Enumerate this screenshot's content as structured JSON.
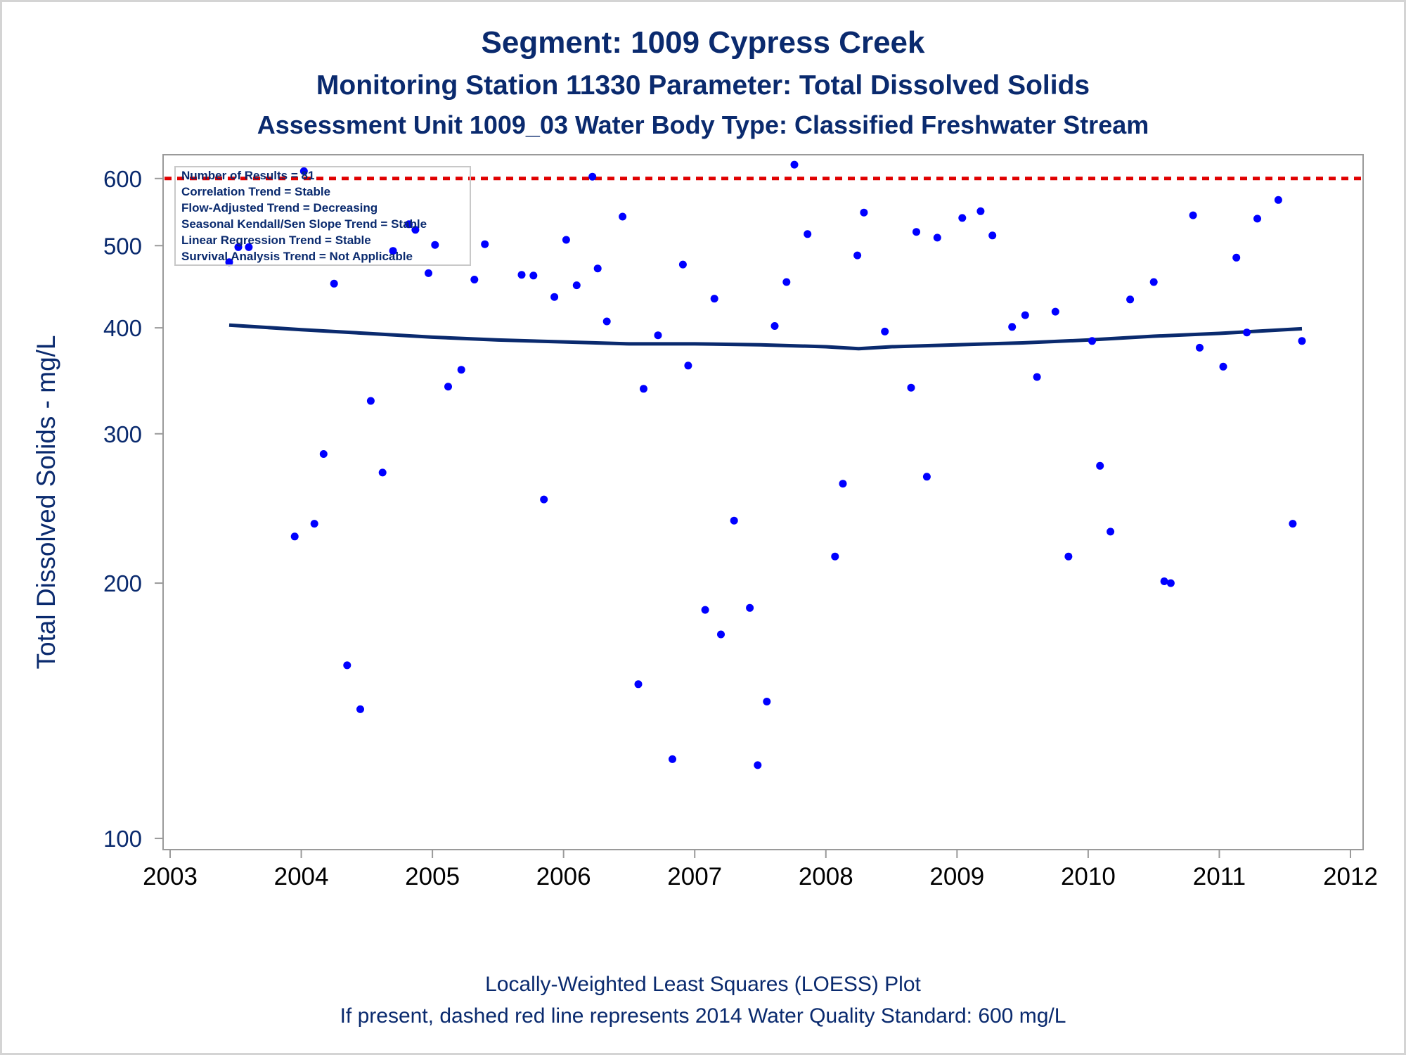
{
  "titles": {
    "line1": "Segment: 1009  Cypress Creek",
    "line2": "Monitoring Station 11330 Parameter: Total Dissolved Solids",
    "line3": "Assessment Unit 1009_03   Water Body Type: Classified Freshwater Stream"
  },
  "footnotes": {
    "line1": "Locally-Weighted Least Squares (LOESS) Plot",
    "line2": "If present, dashed red line represents 2014 Water Quality Standard: 600   mg/L"
  },
  "stats": [
    "Number of Results = 81",
    "Correlation Trend = Stable",
    "Flow-Adjusted Trend = Decreasing",
    "Seasonal Kendall/Sen Slope Trend = Stable",
    "Linear Regression Trend = Stable",
    "Survival Analysis Trend = Not Applicable"
  ],
  "colors": {
    "points": "#0000ff",
    "loess": "#0a2a6e",
    "standard_line": "#e00000",
    "text": "#0a2a6e",
    "axis": "#9a9a9a"
  },
  "chart_data": {
    "type": "scatter",
    "title": "Segment: 1009  Cypress Creek",
    "xlabel": "",
    "ylabel": "Total Dissolved Solids - mg/L",
    "y_scale": "log",
    "xlim": [
      2003,
      2012
    ],
    "ylim": [
      97,
      640
    ],
    "x_ticks": [
      "2003",
      "2004",
      "2005",
      "2006",
      "2007",
      "2008",
      "2009",
      "2010",
      "2011",
      "2012"
    ],
    "y_ticks": [
      100,
      200,
      300,
      400,
      500,
      600
    ],
    "grid": false,
    "reference_line": {
      "y": 600,
      "style": "dashed",
      "color": "#e00000"
    },
    "series": [
      {
        "type": "scatter",
        "points": [
          [
            2003.45,
            478
          ],
          [
            2003.52,
            498
          ],
          [
            2003.6,
            498
          ],
          [
            2003.95,
            227
          ],
          [
            2004.02,
            612
          ],
          [
            2004.1,
            235
          ],
          [
            2004.17,
            284
          ],
          [
            2004.25,
            451
          ],
          [
            2004.35,
            160
          ],
          [
            2004.45,
            142
          ],
          [
            2004.53,
            328
          ],
          [
            2004.62,
            270
          ],
          [
            2004.7,
            493
          ],
          [
            2004.82,
            530
          ],
          [
            2004.87,
            522
          ],
          [
            2004.97,
            464
          ],
          [
            2005.02,
            501
          ],
          [
            2005.12,
            341
          ],
          [
            2005.22,
            357
          ],
          [
            2005.32,
            456
          ],
          [
            2005.4,
            502
          ],
          [
            2005.68,
            462
          ],
          [
            2005.77,
            461
          ],
          [
            2005.85,
            251
          ],
          [
            2005.93,
            435
          ],
          [
            2006.02,
            508
          ],
          [
            2006.1,
            449
          ],
          [
            2006.22,
            603
          ],
          [
            2006.26,
            470
          ],
          [
            2006.33,
            407
          ],
          [
            2006.45,
            541
          ],
          [
            2006.57,
            152
          ],
          [
            2006.61,
            339
          ],
          [
            2006.72,
            392
          ],
          [
            2006.83,
            124
          ],
          [
            2006.91,
            475
          ],
          [
            2006.95,
            361
          ],
          [
            2007.08,
            186
          ],
          [
            2007.15,
            433
          ],
          [
            2007.2,
            174
          ],
          [
            2007.3,
            237
          ],
          [
            2007.42,
            187
          ],
          [
            2007.48,
            122
          ],
          [
            2007.55,
            145
          ],
          [
            2007.61,
            402
          ],
          [
            2007.7,
            453
          ],
          [
            2007.76,
            623
          ],
          [
            2007.86,
            516
          ],
          [
            2008.07,
            215
          ],
          [
            2008.13,
            262
          ],
          [
            2008.24,
            487
          ],
          [
            2008.29,
            547
          ],
          [
            2008.45,
            396
          ],
          [
            2008.65,
            340
          ],
          [
            2008.69,
            519
          ],
          [
            2008.77,
            267
          ],
          [
            2008.85,
            511
          ],
          [
            2009.04,
            539
          ],
          [
            2009.18,
            549
          ],
          [
            2009.27,
            514
          ],
          [
            2009.42,
            401
          ],
          [
            2009.52,
            414
          ],
          [
            2009.61,
            350
          ],
          [
            2009.75,
            418
          ],
          [
            2009.85,
            215
          ],
          [
            2010.03,
            386
          ],
          [
            2010.09,
            275
          ],
          [
            2010.17,
            230
          ],
          [
            2010.32,
            432
          ],
          [
            2010.5,
            453
          ],
          [
            2010.58,
            201
          ],
          [
            2010.63,
            200
          ],
          [
            2010.8,
            543
          ],
          [
            2010.85,
            379
          ],
          [
            2011.03,
            360
          ],
          [
            2011.13,
            484
          ],
          [
            2011.21,
            395
          ],
          [
            2011.29,
            538
          ],
          [
            2011.45,
            566
          ],
          [
            2011.56,
            235
          ],
          [
            2011.63,
            386
          ]
        ]
      },
      {
        "type": "line",
        "points": [
          [
            2003.45,
            403
          ],
          [
            2004.0,
            398
          ],
          [
            2004.5,
            394
          ],
          [
            2005.0,
            390
          ],
          [
            2005.5,
            387
          ],
          [
            2006.0,
            385
          ],
          [
            2006.5,
            383
          ],
          [
            2007.0,
            383
          ],
          [
            2007.5,
            382
          ],
          [
            2008.0,
            380
          ],
          [
            2008.25,
            378
          ],
          [
            2008.5,
            380
          ],
          [
            2009.0,
            382
          ],
          [
            2009.5,
            384
          ],
          [
            2010.0,
            387
          ],
          [
            2010.5,
            391
          ],
          [
            2011.0,
            394
          ],
          [
            2011.63,
            399
          ]
        ]
      }
    ]
  }
}
